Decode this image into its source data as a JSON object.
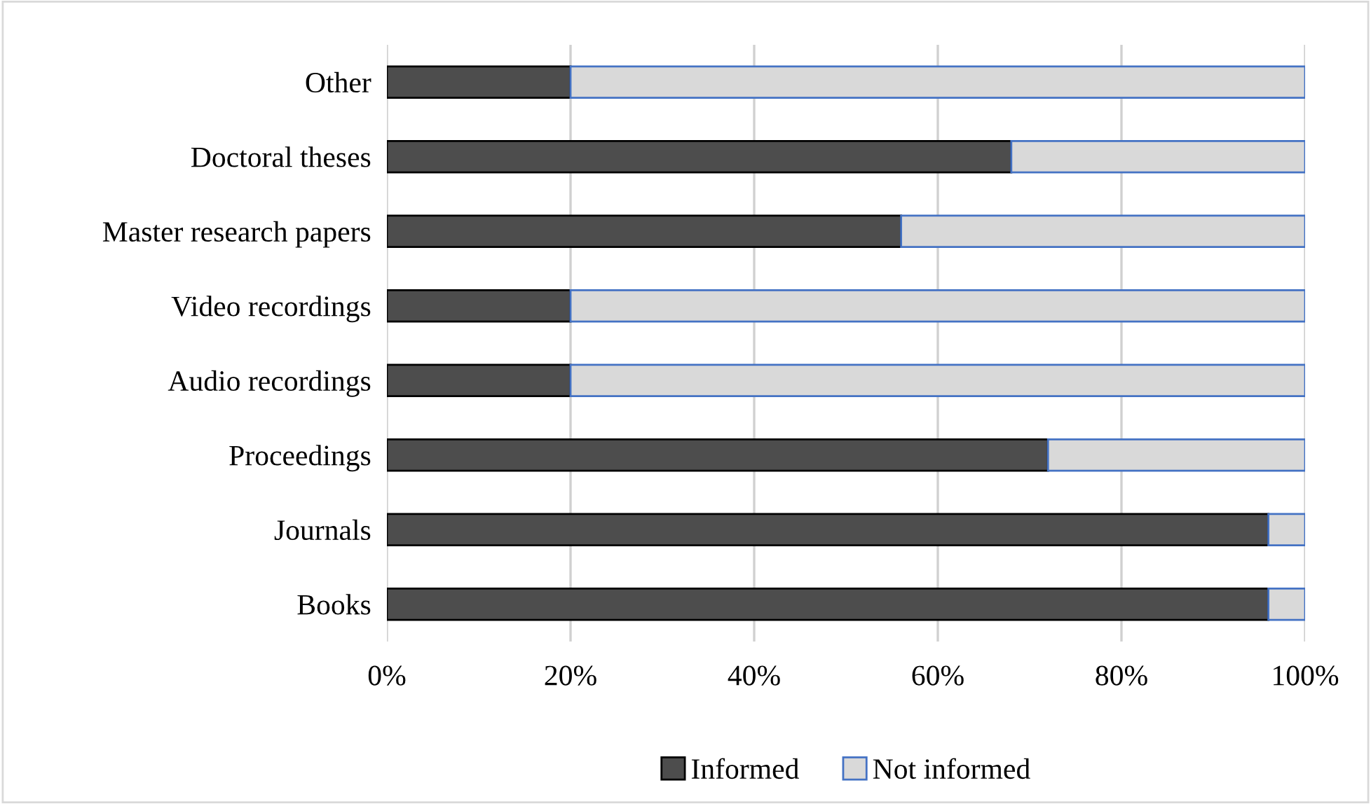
{
  "chart_data": {
    "type": "bar",
    "orientation": "horizontal",
    "stacked": true,
    "categories": [
      "Other",
      "Doctoral theses",
      "Master research papers",
      "Video recordings",
      "Audio recordings",
      "Proceedings",
      "Journals",
      "Books"
    ],
    "series": [
      {
        "name": "Informed",
        "color": "#4d4d4d",
        "values": [
          20,
          68,
          56,
          20,
          20,
          72,
          96,
          96
        ]
      },
      {
        "name": "Not informed",
        "color": "#d9d9d9",
        "values": [
          80,
          32,
          44,
          80,
          80,
          28,
          4,
          4
        ]
      }
    ],
    "xlim": [
      0,
      100
    ],
    "xticks": [
      {
        "value": 0,
        "label": "0%"
      },
      {
        "value": 20,
        "label": "20%"
      },
      {
        "value": 40,
        "label": "40%"
      },
      {
        "value": 60,
        "label": "60%"
      },
      {
        "value": 80,
        "label": "80%"
      },
      {
        "value": 100,
        "label": "100%"
      }
    ],
    "grid": "x",
    "legend": "bottom"
  }
}
